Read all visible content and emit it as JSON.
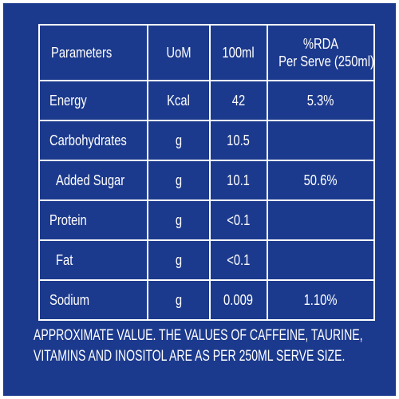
{
  "table": {
    "headers": {
      "parameters": "Parameters",
      "uom": "UoM",
      "per_100ml": "100ml",
      "rda_line1": "%RDA",
      "rda_line2": "Per Serve (250ml)"
    },
    "rows": [
      {
        "parameter": "Energy",
        "uom": "Kcal",
        "per_100ml": "42",
        "rda": "5.3%"
      },
      {
        "parameter": "Carbohydrates",
        "uom": "g",
        "per_100ml": "10.5",
        "rda": ""
      },
      {
        "parameter": "Added Sugar",
        "uom": "g",
        "per_100ml": "10.1",
        "rda": "50.6%"
      },
      {
        "parameter": "Protein",
        "uom": "g",
        "per_100ml": "<0.1",
        "rda": ""
      },
      {
        "parameter": "Fat",
        "uom": "g",
        "per_100ml": "<0.1",
        "rda": ""
      },
      {
        "parameter": "Sodium",
        "uom": "g",
        "per_100ml": "0.009",
        "rda": "1.10%"
      }
    ]
  },
  "footnote": {
    "line1": "APPROXIMATE VALUE. THE VALUES OF CAFFEINE, TAURINE,",
    "line2": "VITAMINS AND INOSITOL ARE AS PER 250ML SERVE SIZE."
  },
  "colors": {
    "background": "#1c3a8d",
    "text": "#ffffff",
    "border": "#ffffff"
  }
}
